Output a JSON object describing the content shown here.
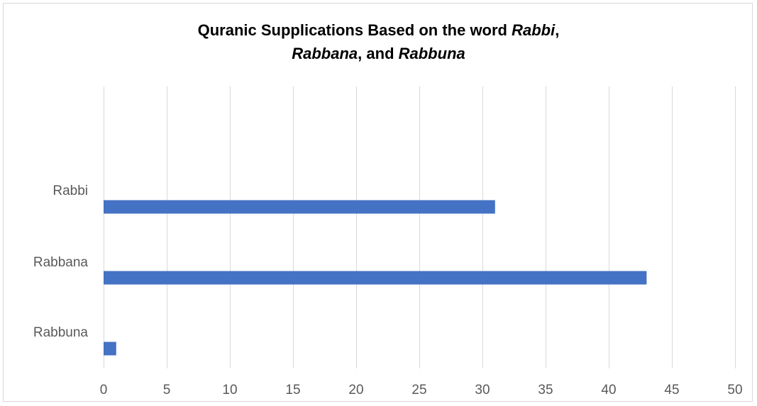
{
  "chart_data": {
    "type": "bar",
    "orientation": "horizontal",
    "title_parts": [
      {
        "text": "Quranic Supplications Based on the word ",
        "italic": false
      },
      {
        "text": "Rabbi",
        "italic": true
      },
      {
        "text": ",",
        "italic": false
      },
      {
        "text": "Rabbana",
        "italic": true,
        "break_before": true
      },
      {
        "text": ", and ",
        "italic": false
      },
      {
        "text": "Rabbuna",
        "italic": true
      }
    ],
    "categories": [
      "Rabbi",
      "Rabbana",
      "Rabbuna"
    ],
    "values": [
      31,
      43,
      1
    ],
    "xlim": [
      0,
      50
    ],
    "xticks": [
      0,
      5,
      10,
      15,
      20,
      25,
      30,
      35,
      40,
      45,
      50
    ],
    "grid": "vertical",
    "legend": "none",
    "bar_color": "#4472c4",
    "grid_color": "#d9d9d9"
  }
}
